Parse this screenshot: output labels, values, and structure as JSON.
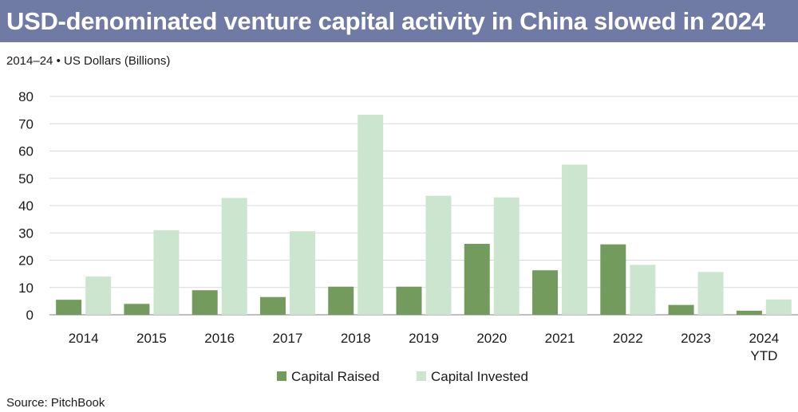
{
  "title": "USD-denominated venture capital activity in China slowed in 2024",
  "subtitle": "2014–24 • US Dollars (Billions)",
  "source": "Source: PitchBook",
  "colors": {
    "raised": "#739b5d",
    "invested": "#cce5cf",
    "title_bg": "#6f7ba4",
    "grid": "#d9d9d9"
  },
  "chart_data": {
    "type": "bar",
    "categories": [
      "2014",
      "2015",
      "2016",
      "2017",
      "2018",
      "2019",
      "2020",
      "2021",
      "2022",
      "2023",
      "2024 YTD"
    ],
    "series": [
      {
        "name": "Capital Raised",
        "values": [
          5.5,
          4.0,
          9.0,
          6.5,
          10.3,
          10.3,
          26.0,
          16.3,
          25.8,
          3.6,
          1.5
        ]
      },
      {
        "name": "Capital Invested",
        "values": [
          14.0,
          31.0,
          42.8,
          30.6,
          73.3,
          43.6,
          43.0,
          55.0,
          18.3,
          15.7,
          5.6
        ]
      }
    ],
    "ylim": [
      0,
      80
    ],
    "yticks": [
      0,
      10,
      20,
      30,
      40,
      50,
      60,
      70,
      80
    ],
    "grid": true,
    "legend": "bottom",
    "xlabel": "",
    "ylabel": ""
  }
}
